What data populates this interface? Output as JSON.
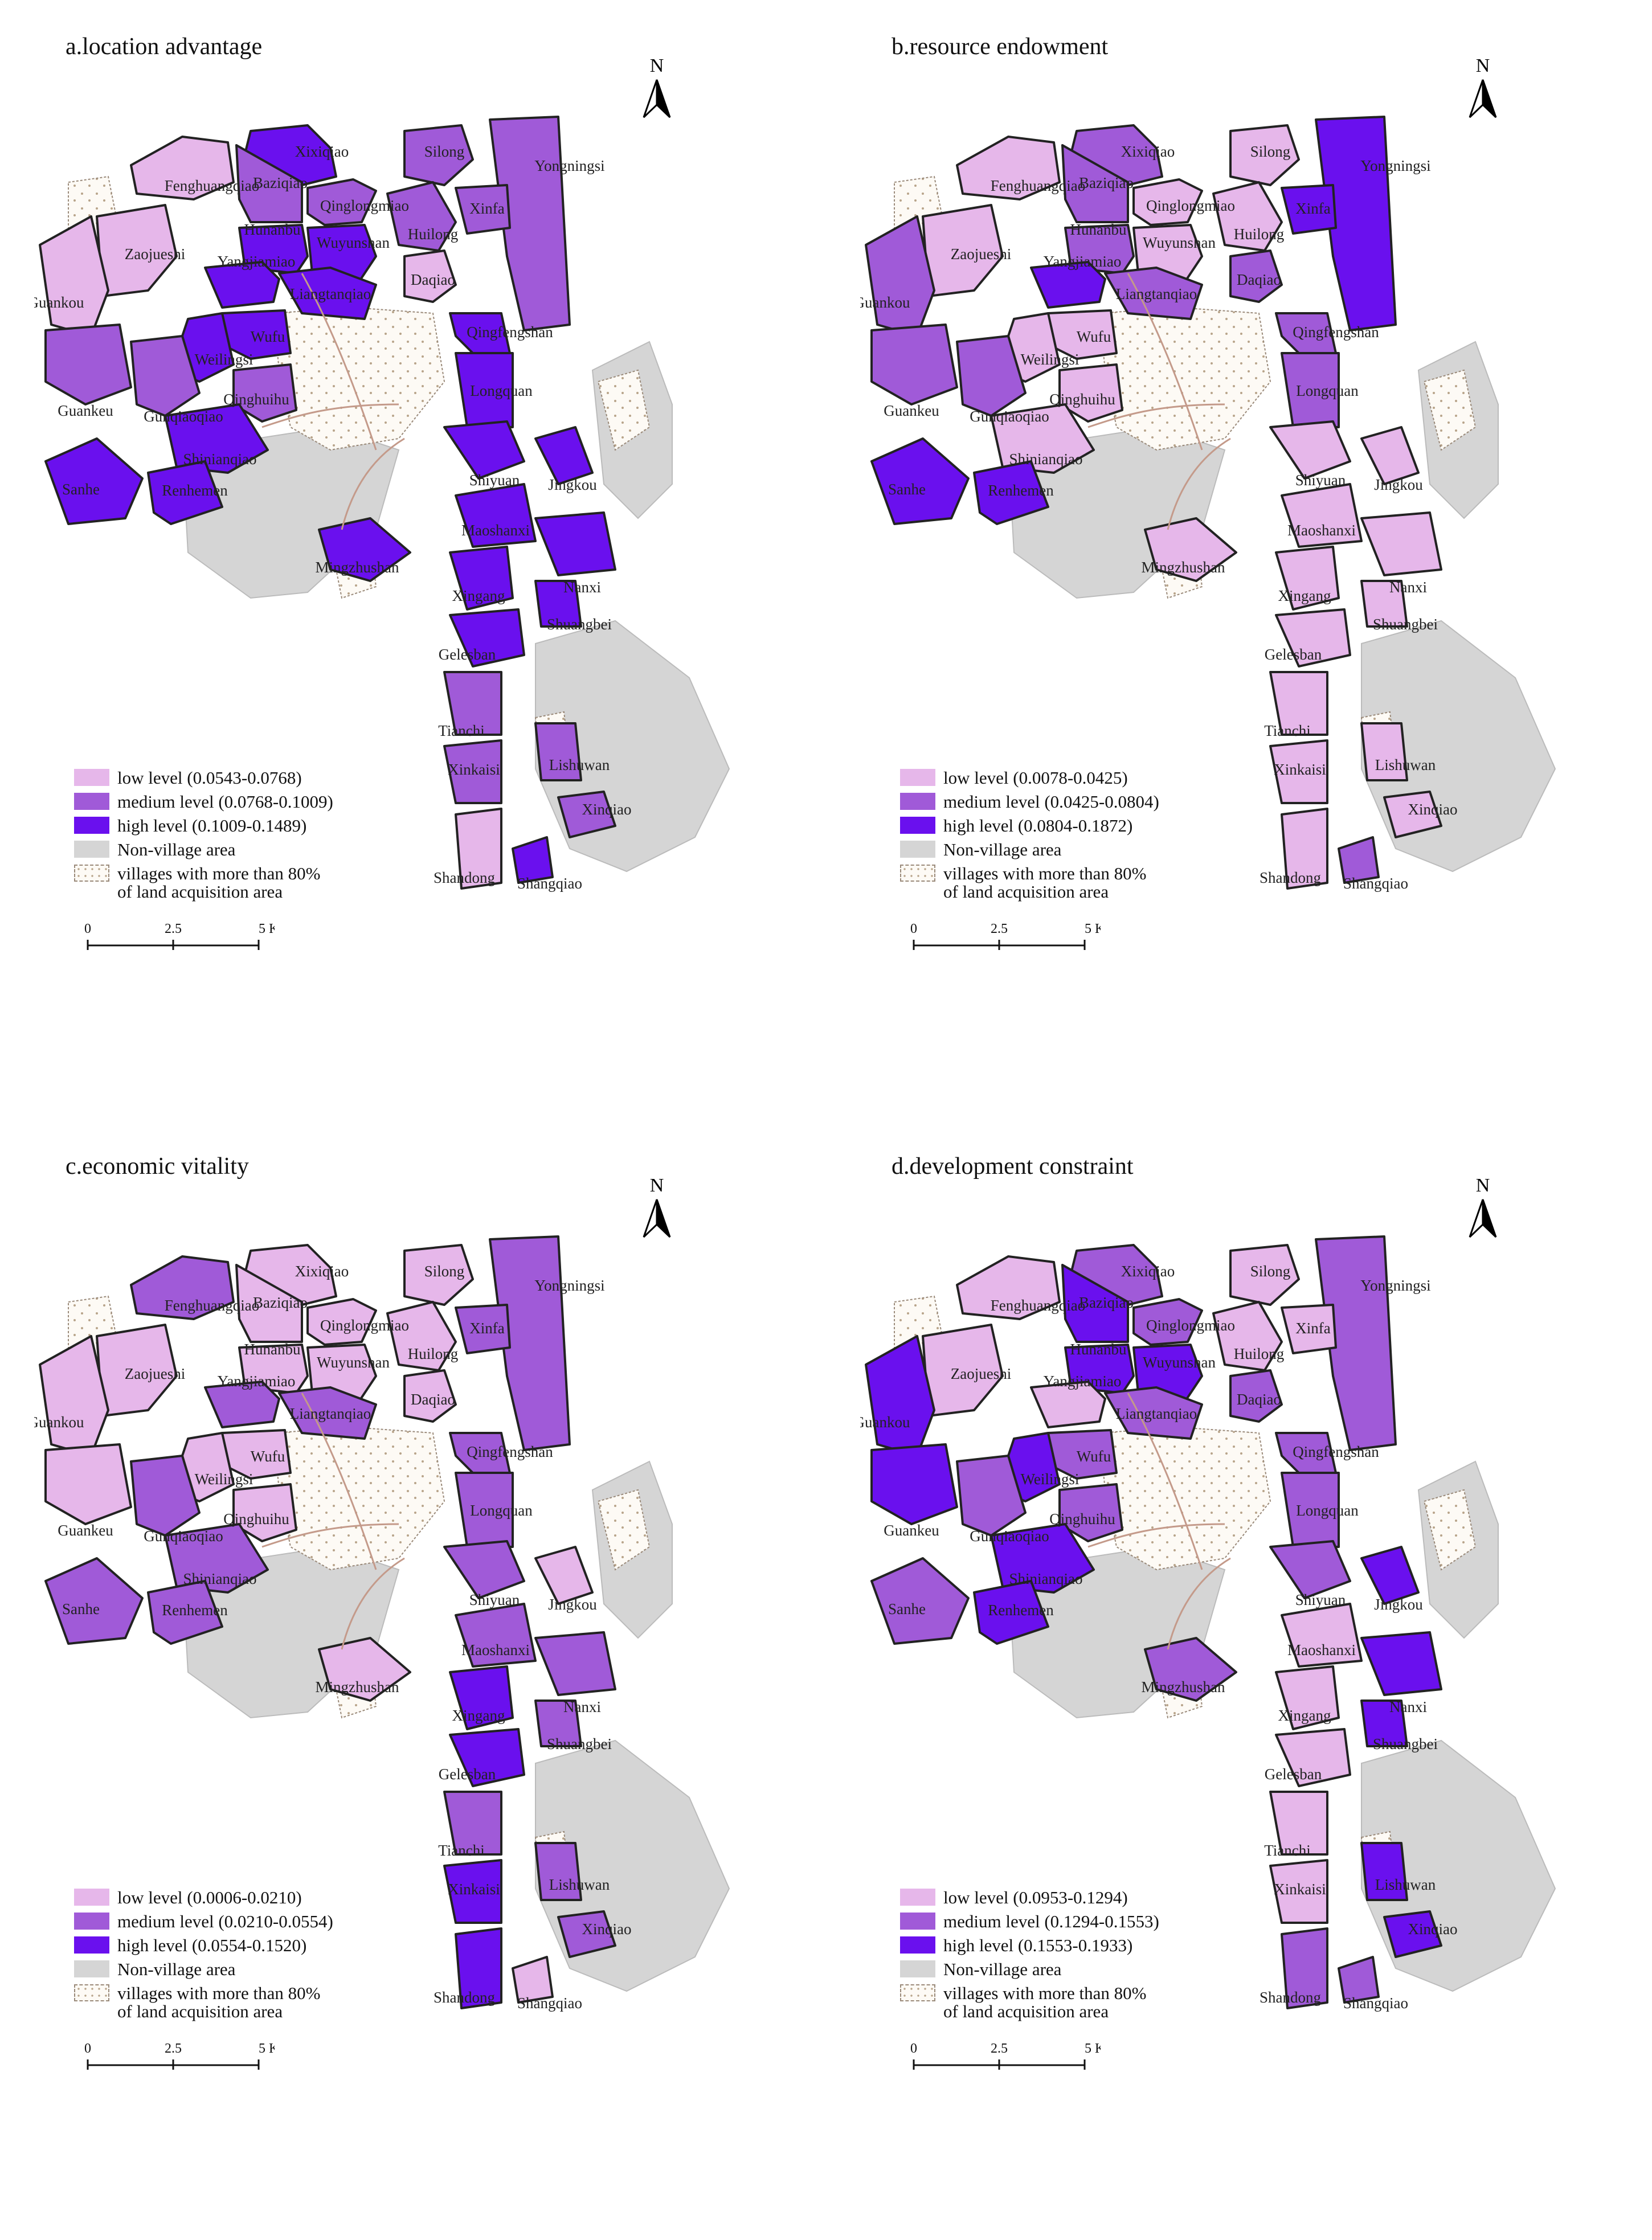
{
  "north_label": "N",
  "legend_shared": {
    "non_village": "Non-village area",
    "acquisition_line1": "villages with more than 80%",
    "acquisition_line2": "of land acquisition area"
  },
  "scale": {
    "ticks": [
      "0",
      "2.5",
      "5 Km"
    ]
  },
  "colors": {
    "low": "#e6b7ea",
    "medium": "#a05ad8",
    "high": "#6a10ee",
    "non_village": "#d5d5d5",
    "acquisition_fill": "#fdfaf5",
    "acquisition_dot": "#b8a48a",
    "road": "#c49a8a",
    "boundary": "#222222"
  },
  "village_names": [
    "Xixiqiao",
    "Silong",
    "Yongningsi",
    "Fenghuangqiao",
    "Baziqiao",
    "Qinglongmiao",
    "Xinfa",
    "Huilong",
    "Hunanbu",
    "Wuyunshan",
    "Yangjiamiao",
    "Zaojueshi",
    "Daqiao",
    "Liangtanqiao",
    "Guankou",
    "Qingfengshan",
    "Wufu",
    "Weilingsi",
    "Longquan",
    "Qinghuihu",
    "Guankeu",
    "Gunqiaoqiao",
    "Shinianqiao",
    "Shiyuan",
    "Jingkou",
    "Sanhe",
    "Renhemen",
    "Maoshanxi",
    "Mingzhushan",
    "Nanxi",
    "Xingang",
    "Shuangbei",
    "Gelesban",
    "Tianchi",
    "Lishuwan",
    "Xinkaisi",
    "Xinqiao",
    "Shandong",
    "Shangqiao"
  ],
  "panels": [
    {
      "title": "a.location advantage",
      "legend": {
        "low": "low level (0.0543-0.0768)",
        "medium": "medium level (0.0768-0.1009)",
        "high": "high level (0.1009-0.1489)"
      },
      "levels": [
        "high",
        "medium",
        "medium",
        "low",
        "medium",
        "medium",
        "medium",
        "medium",
        "high",
        "high",
        "high",
        "low",
        "low",
        "high",
        "low",
        "high",
        "high",
        "high",
        "high",
        "medium",
        "medium",
        "medium",
        "high",
        "high",
        "high",
        "high",
        "high",
        "high",
        "high",
        "high",
        "high",
        "high",
        "high",
        "medium",
        "medium",
        "medium",
        "medium",
        "low",
        "high"
      ]
    },
    {
      "title": "b.resource endowment",
      "legend": {
        "low": "low level (0.0078-0.0425)",
        "medium": "medium level (0.0425-0.0804)",
        "high": "high level (0.0804-0.1872)"
      },
      "levels": [
        "medium",
        "low",
        "high",
        "low",
        "medium",
        "low",
        "high",
        "low",
        "medium",
        "low",
        "high",
        "low",
        "medium",
        "medium",
        "medium",
        "medium",
        "low",
        "low",
        "medium",
        "low",
        "medium",
        "medium",
        "low",
        "low",
        "low",
        "high",
        "high",
        "low",
        "low",
        "low",
        "low",
        "low",
        "low",
        "low",
        "low",
        "low",
        "low",
        "low",
        "medium"
      ]
    },
    {
      "title": "c.economic vitality",
      "legend": {
        "low": "low level (0.0006-0.0210)",
        "medium": "medium level (0.0210-0.0554)",
        "high": "high level (0.0554-0.1520)"
      },
      "levels": [
        "low",
        "low",
        "medium",
        "medium",
        "low",
        "low",
        "medium",
        "low",
        "low",
        "low",
        "medium",
        "low",
        "low",
        "medium",
        "low",
        "medium",
        "low",
        "low",
        "medium",
        "low",
        "low",
        "medium",
        "medium",
        "medium",
        "low",
        "medium",
        "medium",
        "medium",
        "low",
        "medium",
        "high",
        "medium",
        "high",
        "medium",
        "medium",
        "high",
        "medium",
        "high",
        "low"
      ]
    },
    {
      "title": "d.development constraint",
      "legend": {
        "low": "low level (0.0953-0.1294)",
        "medium": "medium level (0.1294-0.1553)",
        "high": "high level (0.1553-0.1933)"
      },
      "levels": [
        "medium",
        "low",
        "medium",
        "low",
        "high",
        "medium",
        "low",
        "low",
        "high",
        "high",
        "low",
        "low",
        "medium",
        "medium",
        "high",
        "medium",
        "medium",
        "high",
        "medium",
        "medium",
        "high",
        "medium",
        "high",
        "medium",
        "high",
        "medium",
        "high",
        "low",
        "medium",
        "high",
        "low",
        "high",
        "low",
        "low",
        "high",
        "low",
        "high",
        "medium",
        "medium"
      ]
    }
  ]
}
